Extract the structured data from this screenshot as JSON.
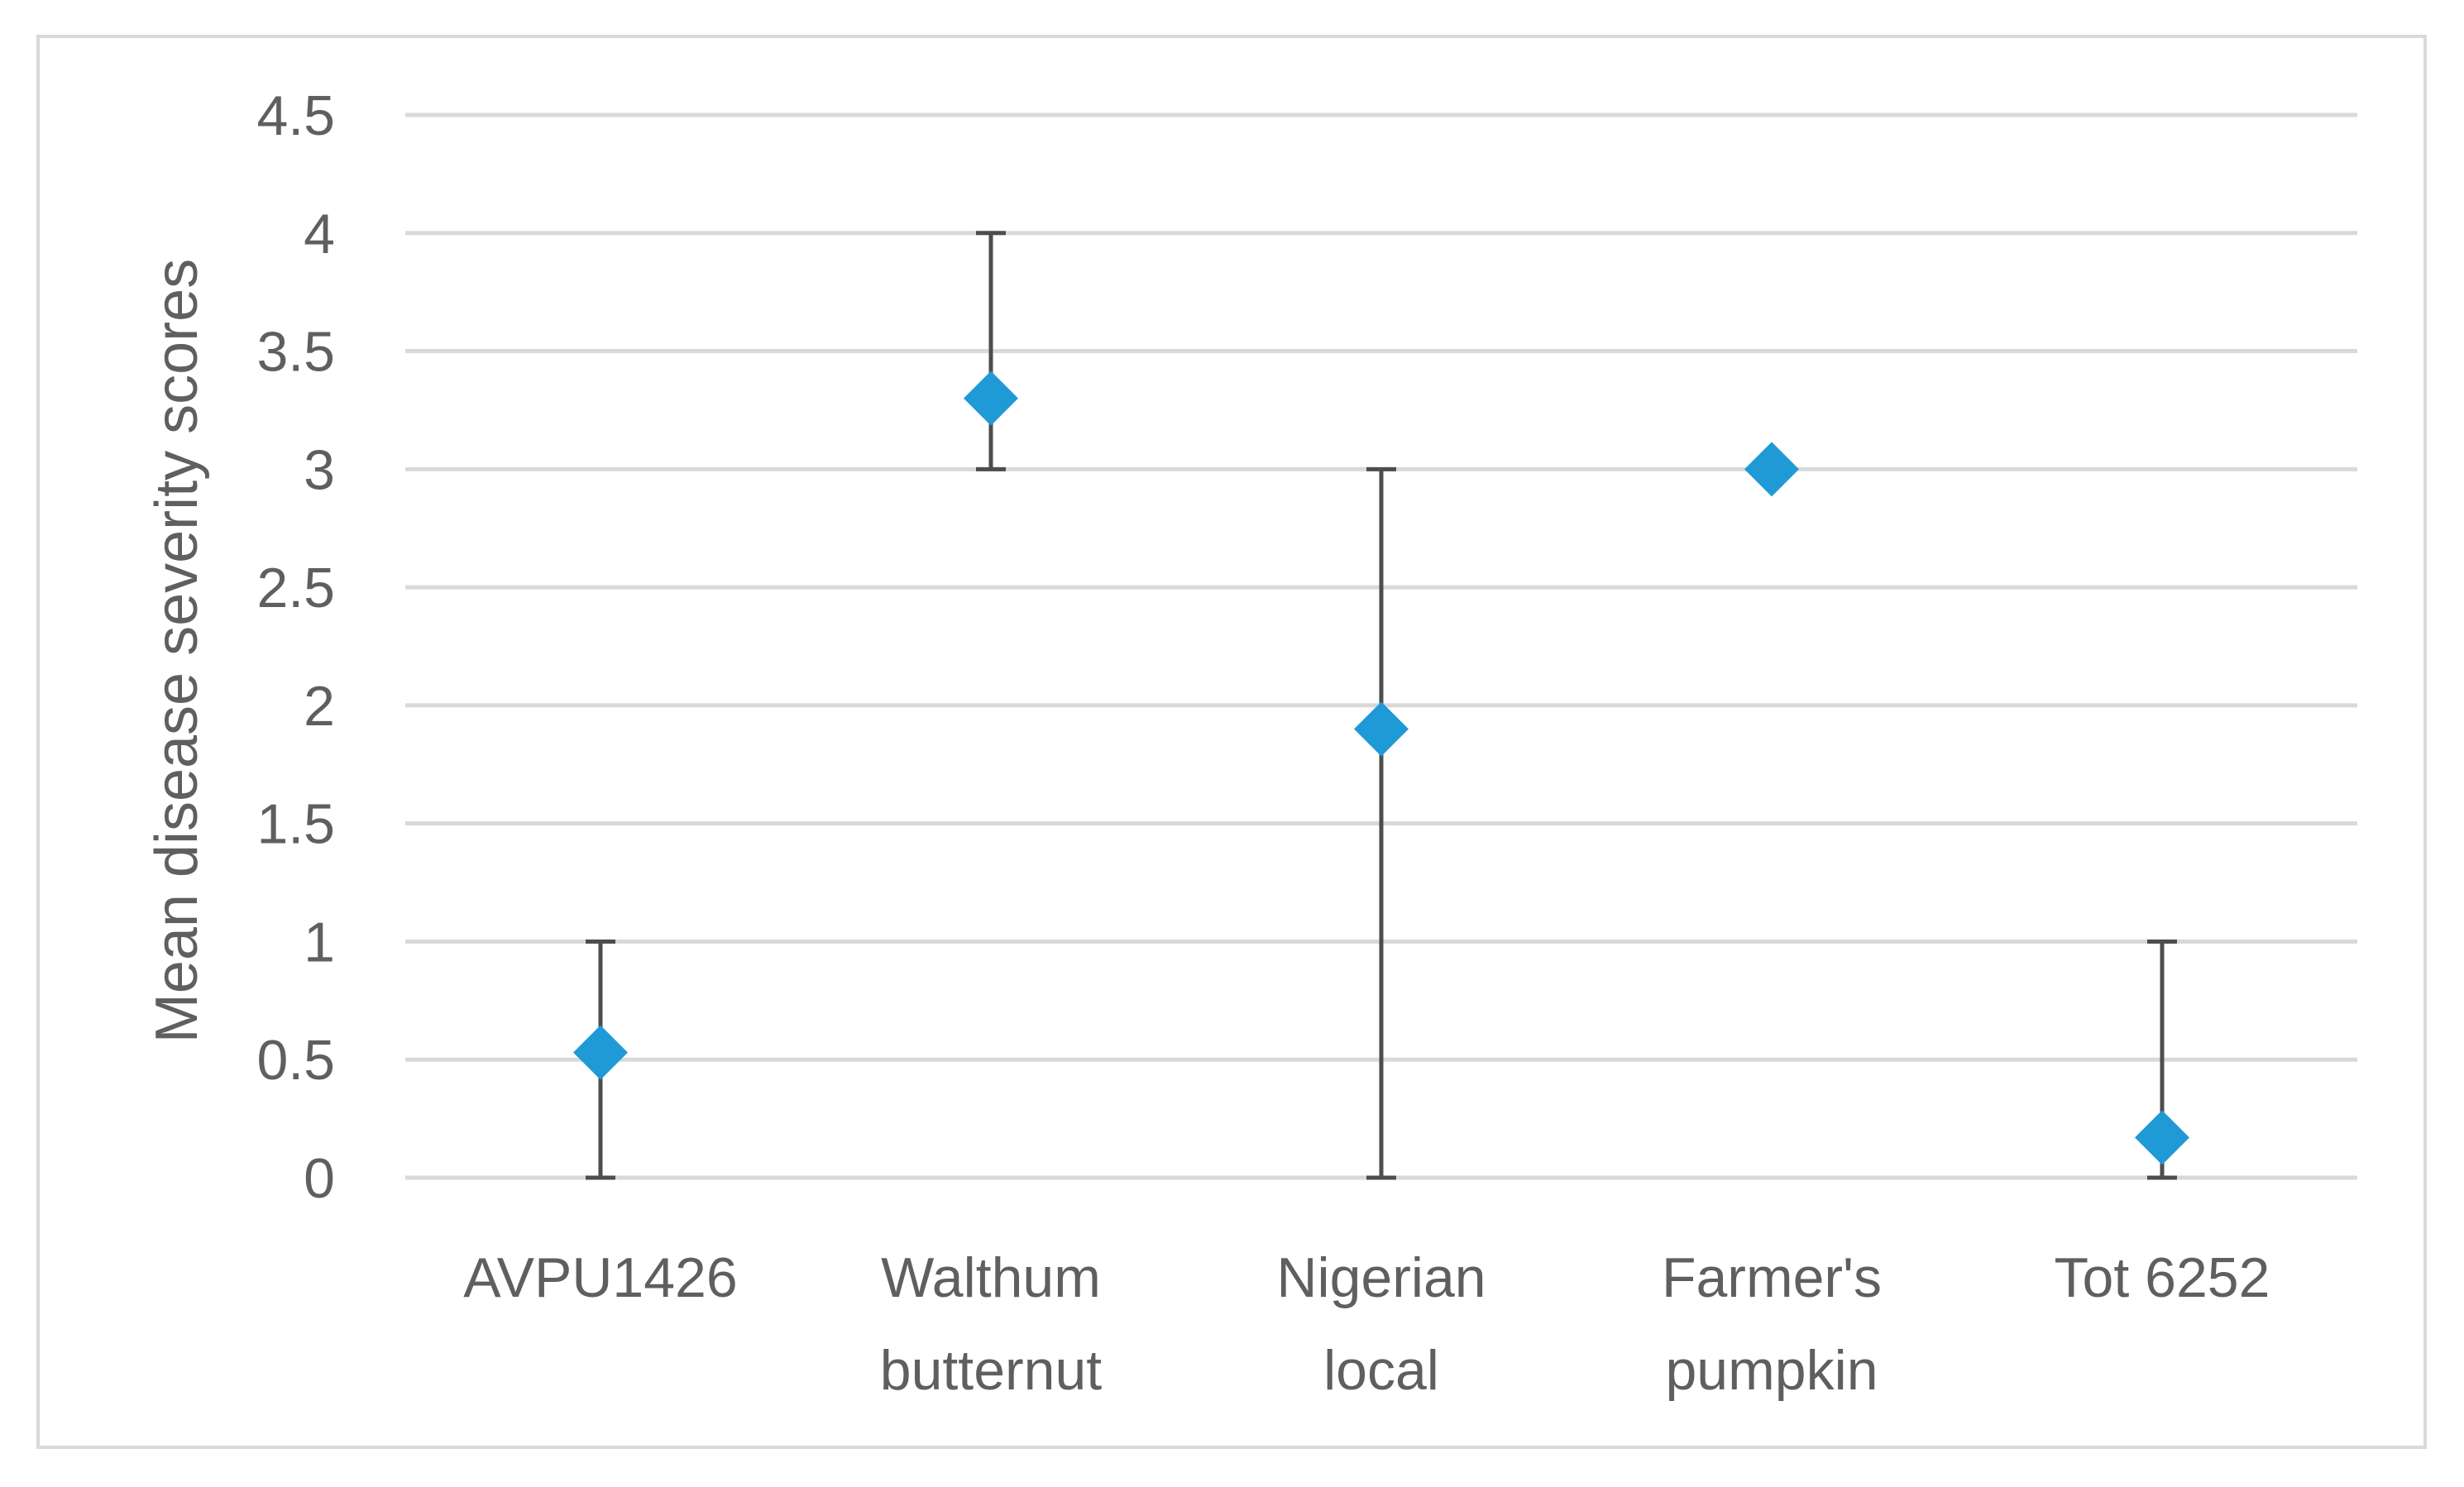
{
  "chart_data": {
    "type": "scatter",
    "title": "",
    "xlabel": "",
    "ylabel": "Mean disease severity scores",
    "ylim": [
      0,
      4.5
    ],
    "y_ticks": [
      "0",
      "0.5",
      "1",
      "1.5",
      "2",
      "2.5",
      "3",
      "3.5",
      "4",
      "4.5"
    ],
    "y_tick_values": [
      0,
      0.5,
      1,
      1.5,
      2,
      2.5,
      3,
      3.5,
      4,
      4.5
    ],
    "grid": true,
    "legend": "none",
    "categories": [
      [
        "AVPU1426"
      ],
      [
        "Walthum",
        "butternut"
      ],
      [
        "Nigerian",
        "local"
      ],
      [
        "Farmer's",
        "pumpkin"
      ],
      [
        "Tot 6252"
      ]
    ],
    "series": [
      {
        "values": [
          0.53,
          3.3,
          1.9,
          3.0,
          0.17
        ],
        "error_low": [
          0,
          3,
          0,
          3,
          0
        ],
        "error_high": [
          1,
          4,
          3,
          3,
          1
        ]
      }
    ],
    "colors": {
      "marker": "#1f9ad6",
      "error_bar": "#4d4d4d",
      "grid": "#d9d9d9",
      "text": "#5f5f5f"
    }
  }
}
